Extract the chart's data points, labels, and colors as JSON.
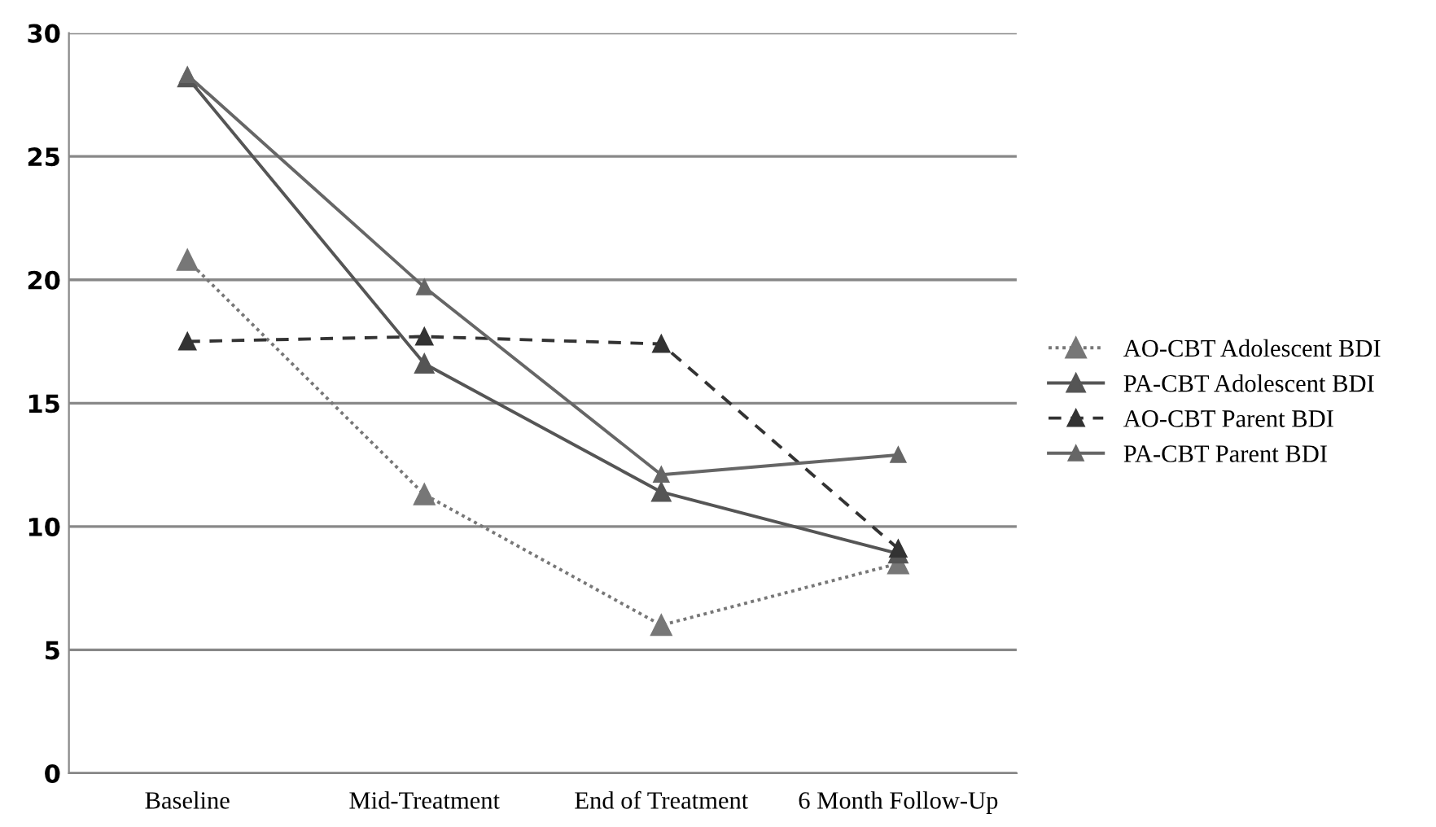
{
  "chart_data": {
    "type": "line",
    "categories": [
      "Baseline",
      "Mid-Treatment",
      "End of Treatment",
      "6 Month Follow-Up"
    ],
    "series": [
      {
        "name": "AO-CBT Adolescent BDI",
        "color": "#777777",
        "values": [
          20.8,
          11.3,
          6.0,
          8.5
        ],
        "line_style": "dotted",
        "marker": "triangle"
      },
      {
        "name": "PA-CBT Adolescent BDI",
        "color": "#555555",
        "values": [
          28.2,
          16.6,
          11.4,
          8.9
        ],
        "line_style": "solid",
        "marker": "triangle"
      },
      {
        "name": "AO-CBT Parent BDI",
        "color": "#333333",
        "values": [
          17.5,
          17.7,
          17.4,
          9.1
        ],
        "line_style": "dashed",
        "marker": "triangle"
      },
      {
        "name": "PA-CBT Parent BDI",
        "color": "#666666",
        "values": [
          28.3,
          19.7,
          12.1,
          12.9
        ],
        "line_style": "solid",
        "marker": "triangle"
      }
    ],
    "ylim": [
      0,
      30
    ],
    "yticks": [
      0,
      5,
      10,
      15,
      20,
      25,
      30
    ],
    "grid": "y",
    "legend": "right"
  }
}
